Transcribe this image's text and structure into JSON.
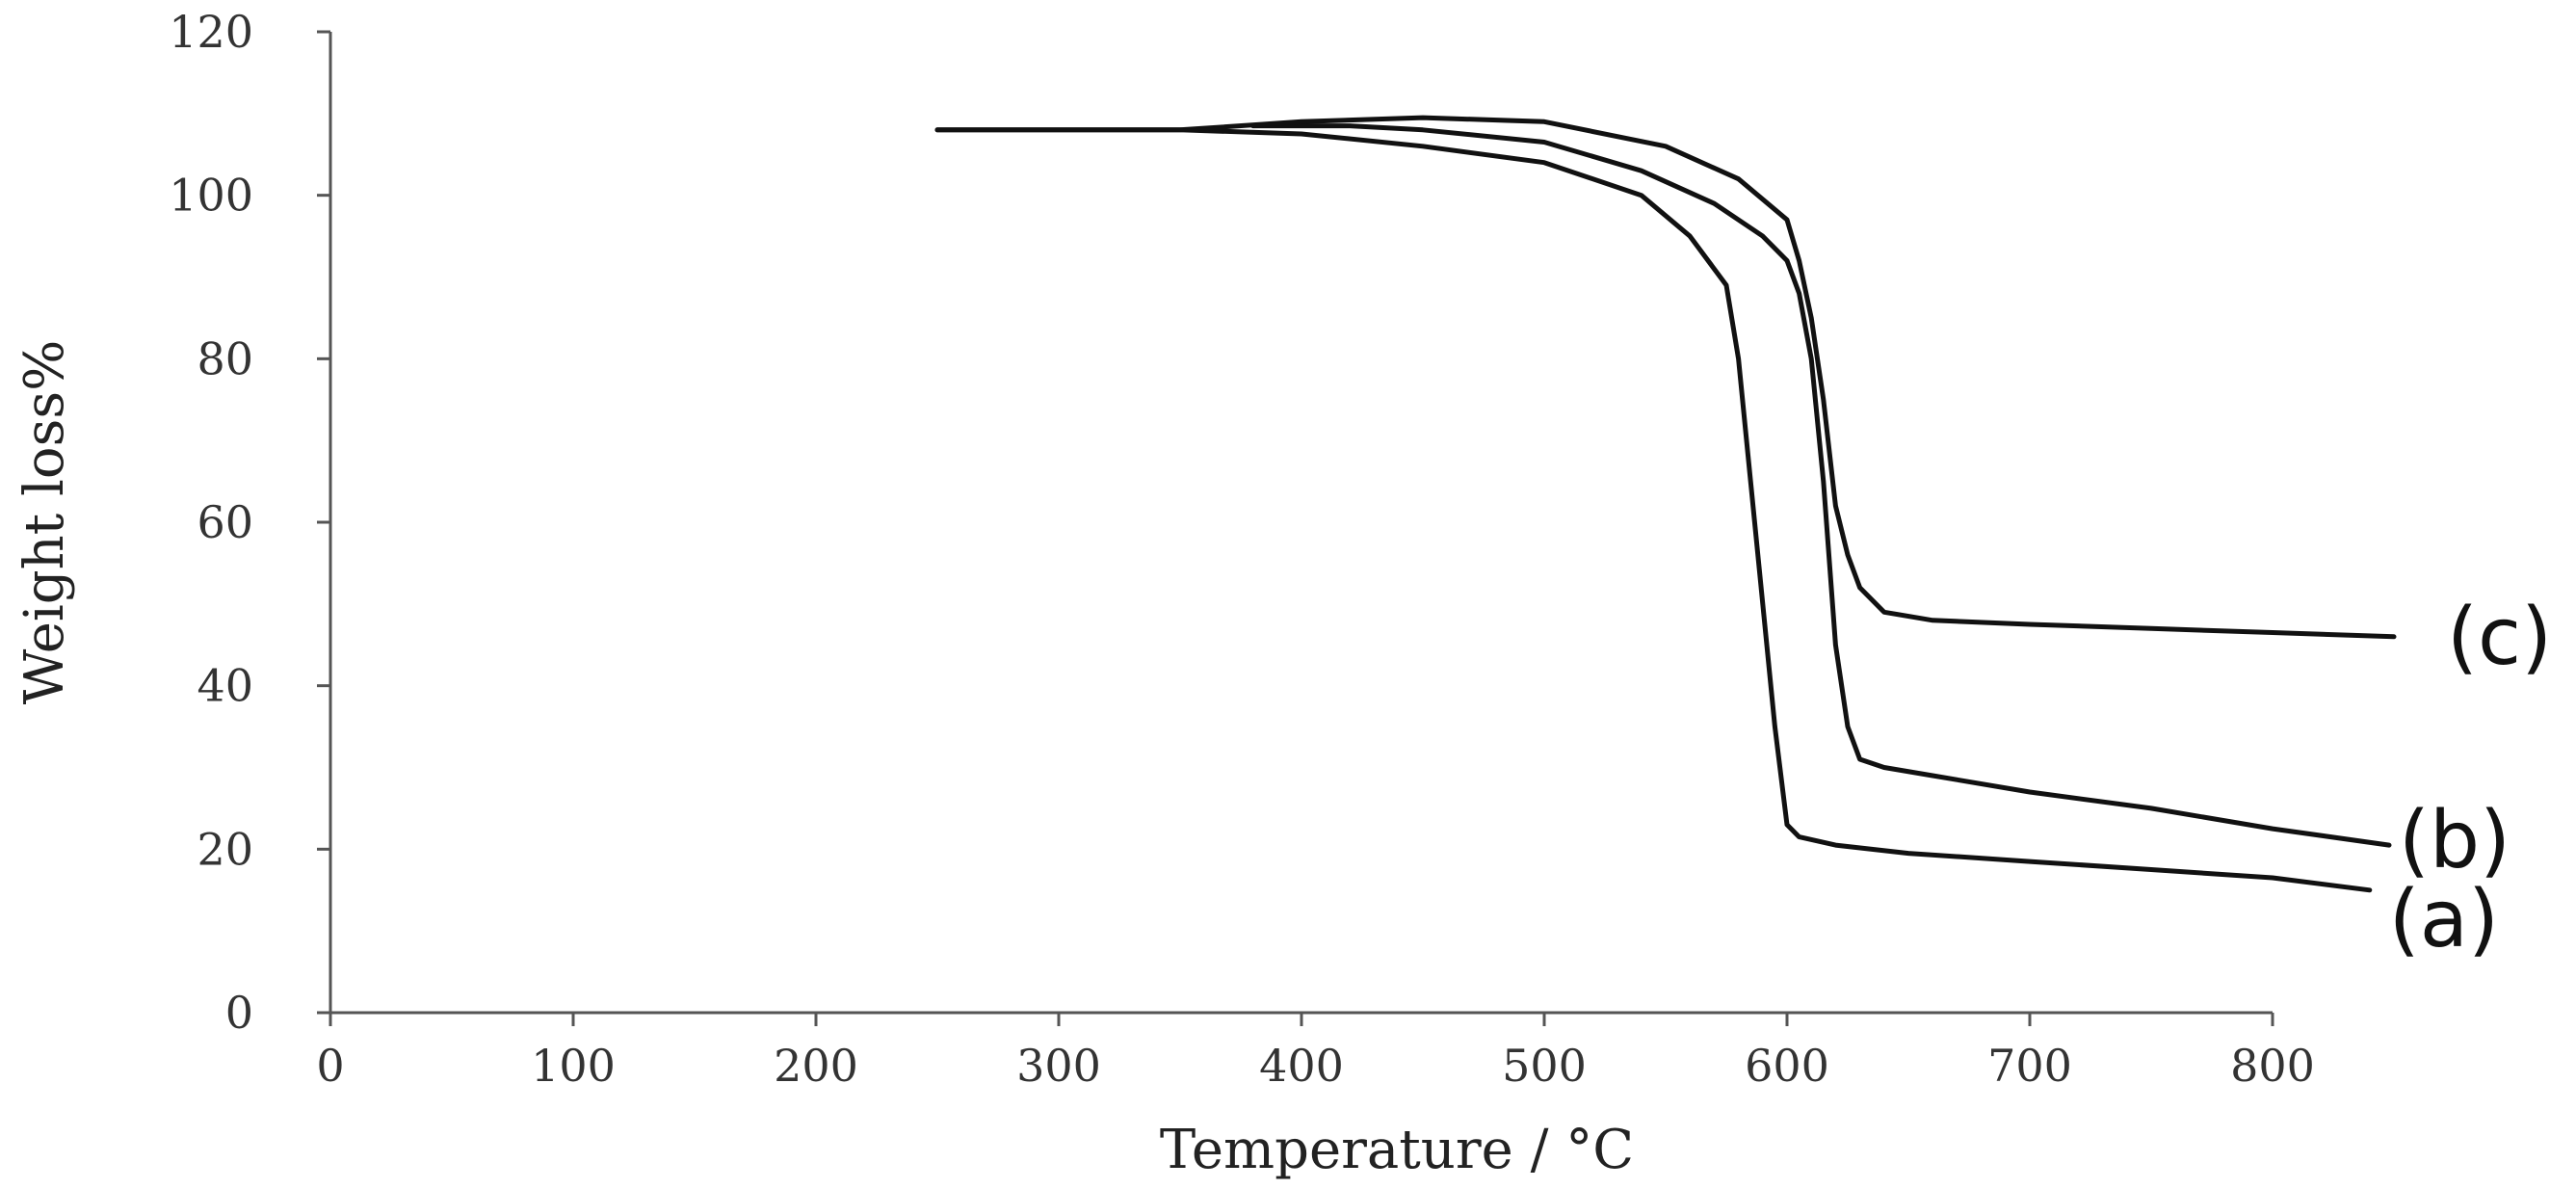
{
  "chart_data": {
    "type": "line",
    "title": "",
    "xlabel": "Temperature / °C",
    "ylabel": "Weight loss%",
    "xlim": [
      0,
      800
    ],
    "ylim": [
      0,
      120
    ],
    "xticks": [
      0,
      100,
      200,
      300,
      400,
      500,
      600,
      700,
      800
    ],
    "yticks": [
      0,
      20,
      40,
      60,
      80,
      100,
      120
    ],
    "grid": false,
    "legend": "none",
    "series": [
      {
        "name": "(a)",
        "x": [
          250,
          300,
          350,
          400,
          450,
          500,
          540,
          560,
          575,
          580,
          585,
          590,
          595,
          600,
          605,
          620,
          650,
          700,
          750,
          800,
          840
        ],
        "y": [
          108,
          108,
          108,
          107.5,
          106,
          104,
          100,
          95,
          89,
          80,
          65,
          50,
          35,
          23,
          21.5,
          20.5,
          19.5,
          18.5,
          17.5,
          16.5,
          15
        ]
      },
      {
        "name": "(b)",
        "x": [
          380,
          420,
          450,
          500,
          540,
          570,
          590,
          600,
          605,
          610,
          615,
          620,
          625,
          630,
          640,
          660,
          700,
          750,
          800,
          848
        ],
        "y": [
          108.5,
          108.5,
          108,
          106.5,
          103,
          99,
          95,
          92,
          88,
          80,
          65,
          45,
          35,
          31,
          30,
          29,
          27,
          25,
          22.5,
          20.5
        ]
      },
      {
        "name": "(c)",
        "x": [
          250,
          300,
          350,
          400,
          450,
          500,
          550,
          580,
          600,
          605,
          610,
          615,
          620,
          625,
          630,
          640,
          660,
          700,
          750,
          800,
          850
        ],
        "y": [
          108,
          108,
          108,
          109,
          109.5,
          109,
          106,
          102,
          97,
          92,
          85,
          75,
          62,
          56,
          52,
          49,
          48,
          47.5,
          47,
          46.5,
          46
        ]
      }
    ]
  }
}
